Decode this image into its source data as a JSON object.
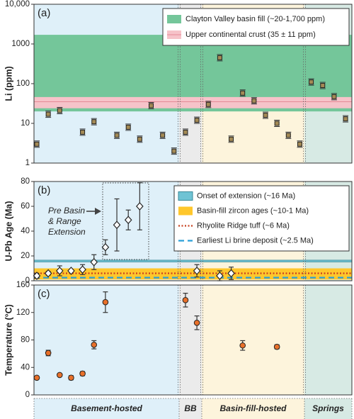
{
  "chart_data": [
    {
      "type": "scatter",
      "panel_label": "(a)",
      "ylabel": "Li (ppm)",
      "log_y": true,
      "ylim": [
        1,
        10000
      ],
      "yticks": [
        1,
        10,
        100,
        1000,
        {
          "value": 10000,
          "label": "10,000"
        }
      ],
      "marker": "square",
      "legend": "upper right",
      "references": [
        {
          "name": "Clayton Valley basin fill (~20-1,700 ppm)",
          "style": "band",
          "range": [
            20,
            1700
          ],
          "color": "#74c69a"
        },
        {
          "name": "Upper continental crust (35 ± 11 ppm)",
          "style": "band",
          "value": 35,
          "error": 11,
          "color": "#f6c3c9"
        }
      ],
      "series": [
        {
          "color": "#a48a55",
          "values": [
            3,
            17,
            21,
            null,
            6,
            11,
            null,
            5,
            8,
            4,
            28,
            5,
            2,
            6,
            12,
            30,
            450,
            4,
            58,
            37,
            16,
            10,
            5,
            3,
            110,
            90,
            47,
            13
          ]
        }
      ]
    },
    {
      "type": "scatter",
      "panel_label": "(b)",
      "ylabel": "U-Pb Age (Ma)",
      "log_y": false,
      "ylim": [
        0,
        80
      ],
      "yticks": [
        0,
        20,
        40,
        60,
        80
      ],
      "marker": "diamond",
      "legend": "upper right",
      "annotation": [
        "Pre Basin",
        "& Range",
        "Extension"
      ],
      "references": [
        {
          "name": "Onset of extension (~16 Ma)",
          "style": "band",
          "range": [
            15.2,
            16.6
          ],
          "color": "#6fc3d4"
        },
        {
          "name": "Basin-fill zircon ages (~10-1 Ma)",
          "style": "band",
          "range": [
            1,
            10
          ],
          "color": "#ffc72c"
        },
        {
          "name": "Rhyolite Ridge tuff (~6 Ma)",
          "style": "dotted",
          "value": 6,
          "color": "#c8401f"
        },
        {
          "name": "Earliest Li brine deposit (~2.5 Ma)",
          "style": "dashed",
          "value": 2.5,
          "color": "#2a9fd8"
        }
      ],
      "series": [
        {
          "color": "#ffffff",
          "values": [
            4,
            6,
            8,
            8,
            9,
            15,
            27,
            45,
            49,
            60,
            null,
            null,
            null,
            null,
            8,
            null,
            4,
            6,
            null,
            null,
            null,
            null,
            null,
            null,
            null,
            null,
            null,
            null
          ],
          "errors": [
            2,
            1.5,
            4,
            null,
            4,
            6,
            6,
            21,
            8,
            19,
            null,
            null,
            null,
            null,
            5,
            null,
            4,
            5,
            null,
            null,
            null,
            null,
            null,
            null,
            null,
            null,
            null,
            null
          ]
        }
      ]
    },
    {
      "type": "scatter",
      "panel_label": "(c)",
      "ylabel": "Temperature (°C)",
      "log_y": false,
      "ylim": [
        0,
        160
      ],
      "yticks": [
        0,
        40,
        80,
        120,
        160
      ],
      "marker": "circle",
      "series": [
        {
          "color": "#e8702a",
          "values": [
            25,
            61,
            29,
            25,
            31,
            73,
            135,
            null,
            null,
            null,
            null,
            null,
            null,
            138,
            105,
            null,
            null,
            null,
            72,
            null,
            null,
            70,
            null,
            null,
            null,
            null,
            null,
            null
          ],
          "errors": [
            null,
            4,
            null,
            3,
            3,
            6,
            15,
            null,
            null,
            null,
            null,
            null,
            null,
            10,
            10,
            null,
            null,
            null,
            7,
            null,
            null,
            3,
            null,
            null,
            null,
            null,
            null,
            null
          ]
        }
      ]
    }
  ],
  "groups": [
    {
      "name": "Basement-hosted",
      "color": "#dff0f9"
    },
    {
      "name": "BB",
      "color": "#ebebeb"
    },
    {
      "name": "Basin-fill-hosted",
      "color": "#fdf4dc"
    },
    {
      "name": "Springs",
      "color": "#d7eae4"
    }
  ]
}
